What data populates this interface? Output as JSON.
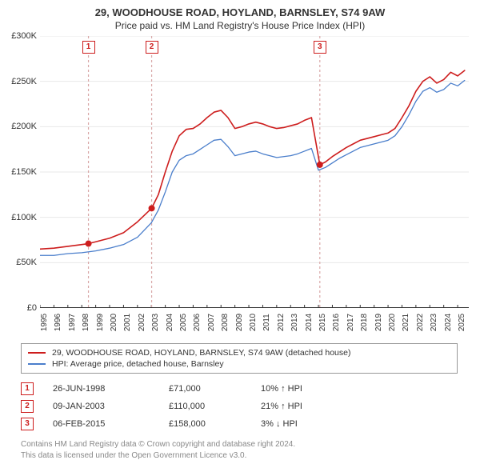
{
  "chart": {
    "title": "29, WOODHOUSE ROAD, HOYLAND, BARNSLEY, S74 9AW",
    "subtitle": "Price paid vs. HM Land Registry's House Price Index (HPI)",
    "type": "line",
    "background_color": "#ffffff",
    "grid_color": "#e8e8e8",
    "axis_color": "#333333",
    "title_fontsize": 13,
    "label_fontsize": 11,
    "tick_fontsize": 10,
    "y": {
      "min": 0,
      "max": 300000,
      "step": 50000,
      "ticks": [
        "£0",
        "£50K",
        "£100K",
        "£150K",
        "£200K",
        "£250K",
        "£300K"
      ]
    },
    "x": {
      "min": 1995,
      "max": 2025.8,
      "years": [
        1995,
        1996,
        1997,
        1998,
        1999,
        2000,
        2001,
        2002,
        2003,
        2004,
        2005,
        2006,
        2007,
        2008,
        2009,
        2010,
        2011,
        2012,
        2013,
        2014,
        2015,
        2016,
        2017,
        2018,
        2019,
        2020,
        2021,
        2022,
        2023,
        2024,
        2025
      ]
    },
    "series": [
      {
        "name": "29, WOODHOUSE ROAD, HOYLAND, BARNSLEY, S74 9AW (detached house)",
        "color": "#cd1d1d",
        "line_width": 1.6,
        "data": [
          [
            1995,
            65000
          ],
          [
            1996,
            66000
          ],
          [
            1997,
            68000
          ],
          [
            1998,
            70000
          ],
          [
            1998.48,
            71000
          ],
          [
            1999,
            73000
          ],
          [
            2000,
            77000
          ],
          [
            2001,
            83000
          ],
          [
            2002,
            95000
          ],
          [
            2003.02,
            110000
          ],
          [
            2003.5,
            125000
          ],
          [
            2004,
            150000
          ],
          [
            2004.5,
            173000
          ],
          [
            2005,
            190000
          ],
          [
            2005.5,
            197000
          ],
          [
            2006,
            198000
          ],
          [
            2006.5,
            203000
          ],
          [
            2007,
            210000
          ],
          [
            2007.5,
            216000
          ],
          [
            2008,
            218000
          ],
          [
            2008.5,
            210000
          ],
          [
            2009,
            198000
          ],
          [
            2009.5,
            200000
          ],
          [
            2010,
            203000
          ],
          [
            2010.5,
            205000
          ],
          [
            2011,
            203000
          ],
          [
            2011.5,
            200000
          ],
          [
            2012,
            198000
          ],
          [
            2012.5,
            199000
          ],
          [
            2013,
            201000
          ],
          [
            2013.5,
            203000
          ],
          [
            2014,
            207000
          ],
          [
            2014.5,
            210000
          ],
          [
            2015.1,
            158000
          ],
          [
            2015.5,
            161000
          ],
          [
            2016,
            167000
          ],
          [
            2016.5,
            172000
          ],
          [
            2017,
            177000
          ],
          [
            2017.5,
            181000
          ],
          [
            2018,
            185000
          ],
          [
            2018.5,
            187000
          ],
          [
            2019,
            189000
          ],
          [
            2019.5,
            191000
          ],
          [
            2020,
            193000
          ],
          [
            2020.5,
            198000
          ],
          [
            2021,
            210000
          ],
          [
            2021.5,
            223000
          ],
          [
            2022,
            239000
          ],
          [
            2022.5,
            250000
          ],
          [
            2023,
            255000
          ],
          [
            2023.5,
            248000
          ],
          [
            2024,
            252000
          ],
          [
            2024.5,
            260000
          ],
          [
            2025,
            256000
          ],
          [
            2025.5,
            262000
          ]
        ]
      },
      {
        "name": "HPI: Average price, detached house, Barnsley",
        "color": "#4a7ecb",
        "line_width": 1.3,
        "data": [
          [
            1995,
            58000
          ],
          [
            1996,
            58000
          ],
          [
            1997,
            60000
          ],
          [
            1998,
            61000
          ],
          [
            1999,
            63000
          ],
          [
            2000,
            66000
          ],
          [
            2001,
            70000
          ],
          [
            2002,
            78000
          ],
          [
            2003,
            94000
          ],
          [
            2003.5,
            108000
          ],
          [
            2004,
            128000
          ],
          [
            2004.5,
            150000
          ],
          [
            2005,
            163000
          ],
          [
            2005.5,
            168000
          ],
          [
            2006,
            170000
          ],
          [
            2006.5,
            175000
          ],
          [
            2007,
            180000
          ],
          [
            2007.5,
            185000
          ],
          [
            2008,
            186000
          ],
          [
            2008.5,
            178000
          ],
          [
            2009,
            168000
          ],
          [
            2009.5,
            170000
          ],
          [
            2010,
            172000
          ],
          [
            2010.5,
            173000
          ],
          [
            2011,
            170000
          ],
          [
            2011.5,
            168000
          ],
          [
            2012,
            166000
          ],
          [
            2012.5,
            167000
          ],
          [
            2013,
            168000
          ],
          [
            2013.5,
            170000
          ],
          [
            2014,
            173000
          ],
          [
            2014.5,
            176000
          ],
          [
            2015,
            152000
          ],
          [
            2015.5,
            155000
          ],
          [
            2016,
            160000
          ],
          [
            2016.5,
            165000
          ],
          [
            2017,
            169000
          ],
          [
            2017.5,
            173000
          ],
          [
            2018,
            177000
          ],
          [
            2018.5,
            179000
          ],
          [
            2019,
            181000
          ],
          [
            2019.5,
            183000
          ],
          [
            2020,
            185000
          ],
          [
            2020.5,
            190000
          ],
          [
            2021,
            200000
          ],
          [
            2021.5,
            213000
          ],
          [
            2022,
            228000
          ],
          [
            2022.5,
            239000
          ],
          [
            2023,
            243000
          ],
          [
            2023.5,
            238000
          ],
          [
            2024,
            241000
          ],
          [
            2024.5,
            248000
          ],
          [
            2025,
            245000
          ],
          [
            2025.5,
            251000
          ]
        ]
      }
    ],
    "transactions": [
      {
        "num": "1",
        "year": 1998.48,
        "price": 71000,
        "date": "26-JUN-1998",
        "price_str": "£71,000",
        "delta": "10% ↑ HPI"
      },
      {
        "num": "2",
        "year": 2003.02,
        "price": 110000,
        "date": "09-JAN-2003",
        "price_str": "£110,000",
        "delta": "21% ↑ HPI"
      },
      {
        "num": "3",
        "year": 2015.1,
        "price": 158000,
        "date": "06-FEB-2015",
        "price_str": "£158,000",
        "delta": "3% ↓ HPI"
      }
    ],
    "marker_dash_color": "#d9a8a8",
    "marker_box_border": "#cd1d1d",
    "point_radius": 4
  },
  "legend": {
    "items": [
      {
        "color": "#cd1d1d",
        "label": "29, WOODHOUSE ROAD, HOYLAND, BARNSLEY, S74 9AW (detached house)"
      },
      {
        "color": "#4a7ecb",
        "label": "HPI: Average price, detached house, Barnsley"
      }
    ]
  },
  "footnote": {
    "line1": "Contains HM Land Registry data © Crown copyright and database right 2024.",
    "line2": "This data is licensed under the Open Government Licence v3.0."
  }
}
